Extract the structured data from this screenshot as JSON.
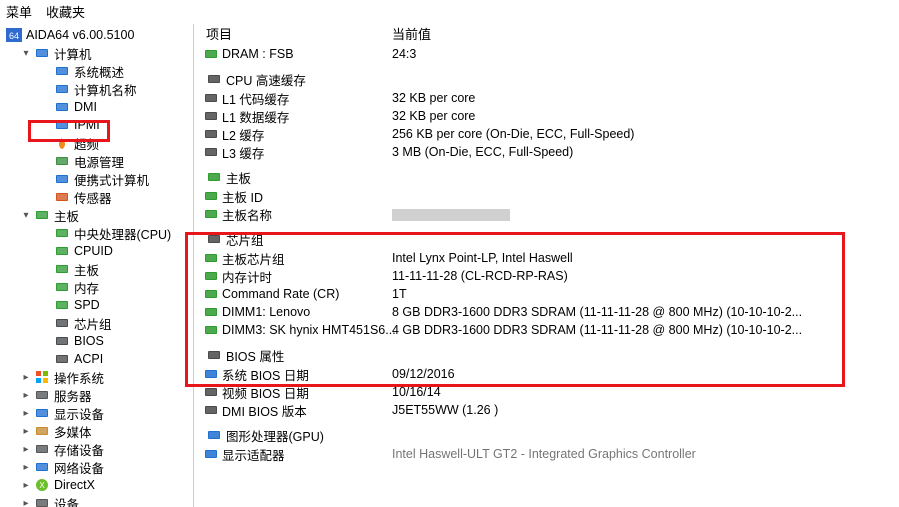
{
  "menubar": {
    "menu": "菜单",
    "favorites": "收藏夹"
  },
  "header": {
    "property": "项目",
    "value": "当前值"
  },
  "tree": [
    {
      "level": 0,
      "toggle": "",
      "iconColor": "#2f6bcf",
      "label": "AIDA64 v6.00.5100",
      "iconText": "64"
    },
    {
      "level": 1,
      "toggle": "▾",
      "iconColor": "#1f6fd1",
      "label": "计算机"
    },
    {
      "level": 2,
      "toggle": "",
      "iconColor": "#1f6fd1",
      "label": "系统概述"
    },
    {
      "level": 2,
      "toggle": "",
      "iconColor": "#1f6fd1",
      "label": "计算机名称"
    },
    {
      "level": 2,
      "toggle": "",
      "iconColor": "#1f6fd1",
      "label": "DMI"
    },
    {
      "level": 2,
      "toggle": "",
      "iconColor": "#1f6fd1",
      "label": "IPMI",
      "strike": true
    },
    {
      "level": 2,
      "toggle": "",
      "iconColor": "#f08a1a",
      "label": "超频",
      "flame": true
    },
    {
      "level": 2,
      "toggle": "",
      "iconColor": "#3a8f3a",
      "label": "电源管理",
      "strike": true
    },
    {
      "level": 2,
      "toggle": "",
      "iconColor": "#1f6fd1",
      "label": "便携式计算机"
    },
    {
      "level": 2,
      "toggle": "",
      "iconColor": "#d85218",
      "label": "传感器"
    },
    {
      "level": 1,
      "toggle": "▾",
      "iconColor": "#2e9b2e",
      "label": "主板"
    },
    {
      "level": 2,
      "toggle": "",
      "iconColor": "#2e9b2e",
      "label": "中央处理器(CPU)"
    },
    {
      "level": 2,
      "toggle": "",
      "iconColor": "#2e9b2e",
      "label": "CPUID"
    },
    {
      "level": 2,
      "toggle": "",
      "iconColor": "#2e9b2e",
      "label": "主板"
    },
    {
      "level": 2,
      "toggle": "",
      "iconColor": "#2e9b2e",
      "label": "内存"
    },
    {
      "level": 2,
      "toggle": "",
      "iconColor": "#2e9b2e",
      "label": "SPD"
    },
    {
      "level": 2,
      "toggle": "",
      "iconColor": "#4a4a4a",
      "label": "芯片组"
    },
    {
      "level": 2,
      "toggle": "",
      "iconColor": "#4a4a4a",
      "label": "BIOS"
    },
    {
      "level": 2,
      "toggle": "",
      "iconColor": "#4a4a4a",
      "label": "ACPI"
    },
    {
      "level": 1,
      "toggle": "▸",
      "iconColor": "#1f6fd1",
      "label": "操作系统",
      "winLogo": true
    },
    {
      "level": 1,
      "toggle": "▸",
      "iconColor": "#555555",
      "label": "服务器"
    },
    {
      "level": 1,
      "toggle": "▸",
      "iconColor": "#1f6fd1",
      "label": "显示设备"
    },
    {
      "level": 1,
      "toggle": "▸",
      "iconColor": "#ca8a2a",
      "label": "多媒体"
    },
    {
      "level": 1,
      "toggle": "▸",
      "iconColor": "#555555",
      "label": "存储设备"
    },
    {
      "level": 1,
      "toggle": "▸",
      "iconColor": "#1f6fd1",
      "label": "网络设备"
    },
    {
      "level": 1,
      "toggle": "▸",
      "iconColor": "#6cbf2a",
      "label": "DirectX",
      "dxLogo": true
    },
    {
      "level": 1,
      "toggle": "▸",
      "iconColor": "#555555",
      "label": "设备"
    }
  ],
  "content": [
    {
      "type": "line",
      "icon": "#2e9b2e",
      "label": "DRAM : FSB",
      "value": "24:3",
      "noTopGap": true
    },
    {
      "type": "group",
      "icon": "#4a4a4a",
      "label": "CPU 高速缓存"
    },
    {
      "type": "line",
      "icon": "#4a4a4a",
      "label": "L1 代码缓存",
      "value": "32 KB per core"
    },
    {
      "type": "line",
      "icon": "#4a4a4a",
      "label": "L1 数据缓存",
      "value": "32 KB per core"
    },
    {
      "type": "line",
      "icon": "#4a4a4a",
      "label": "L2 缓存",
      "value": "256 KB per core  (On-Die, ECC, Full-Speed)"
    },
    {
      "type": "line",
      "icon": "#4a4a4a",
      "label": "L3 缓存",
      "value": "3 MB  (On-Die, ECC, Full-Speed)"
    },
    {
      "type": "group",
      "icon": "#2e9b2e",
      "label": "主板"
    },
    {
      "type": "line",
      "icon": "#2e9b2e",
      "label": "主板 ID",
      "value": "<DMI>"
    },
    {
      "type": "line",
      "icon": "#2e9b2e",
      "label": "主板名称",
      "value": "",
      "greyBar": true
    },
    {
      "type": "group",
      "icon": "#4a4a4a",
      "label": "芯片组"
    },
    {
      "type": "line",
      "icon": "#2e9b2e",
      "label": "主板芯片组",
      "value": "Intel Lynx Point-LP, Intel Haswell"
    },
    {
      "type": "line",
      "icon": "#2e9b2e",
      "label": "内存计时",
      "value": "11-11-11-28  (CL-RCD-RP-RAS)"
    },
    {
      "type": "line",
      "icon": "#2e9b2e",
      "label": "Command Rate (CR)",
      "value": "1T"
    },
    {
      "type": "line",
      "icon": "#2e9b2e",
      "label": "DIMM1: Lenovo",
      "value": "8 GB DDR3-1600 DDR3 SDRAM  (11-11-11-28 @ 800 MHz)  (10-10-10-2..."
    },
    {
      "type": "line",
      "icon": "#2e9b2e",
      "label": "DIMM3: SK hynix HMT451S6...",
      "value": "4 GB DDR3-1600 DDR3 SDRAM  (11-11-11-28 @ 800 MHz)  (10-10-10-2..."
    },
    {
      "type": "group",
      "icon": "#4a4a4a",
      "label": "BIOS 属性"
    },
    {
      "type": "line",
      "icon": "#1f6fd1",
      "label": "系统 BIOS 日期",
      "value": "09/12/2016"
    },
    {
      "type": "line",
      "icon": "#4a4a4a",
      "label": "视频 BIOS 日期",
      "value": "10/16/14"
    },
    {
      "type": "line",
      "icon": "#4a4a4a",
      "label": "DMI BIOS 版本",
      "value": "J5ET55WW (1.26 )"
    },
    {
      "type": "group",
      "icon": "#1f6fd1",
      "label": "图形处理器(GPU)"
    },
    {
      "type": "line",
      "icon": "#1f6fd1",
      "label": "显示适配器",
      "value": "Intel Haswell-ULT GT2 - Integrated Graphics Controller",
      "dim": true
    }
  ]
}
